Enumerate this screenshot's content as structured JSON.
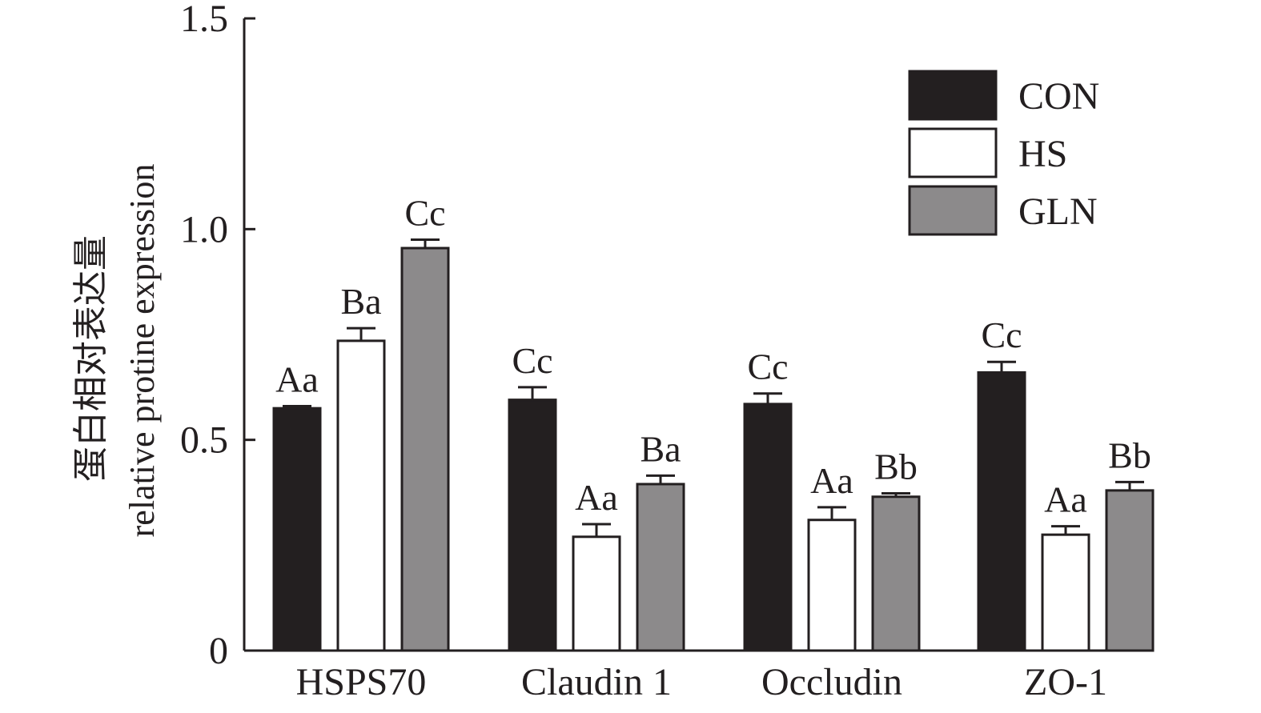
{
  "chart_data": {
    "type": "bar",
    "title": "",
    "ylabel_cn": "蛋白相对表达量",
    "ylabel_en": "relative protine expression",
    "xlabel": "",
    "ylim": [
      0,
      1.5
    ],
    "yticks": [
      {
        "value": 0,
        "label": "0"
      },
      {
        "value": 0.5,
        "label": "0.5"
      },
      {
        "value": 1.0,
        "label": "1.0"
      },
      {
        "value": 1.5,
        "label": "1.5"
      }
    ],
    "categories": [
      "HSPS70",
      "Claudin 1",
      "Occludin",
      "ZO-1"
    ],
    "series": [
      {
        "name": "CON",
        "color": "#231f20",
        "values": [
          0.575,
          0.595,
          0.585,
          0.66
        ],
        "errors": [
          0.005,
          0.03,
          0.025,
          0.025
        ],
        "labels": [
          "Aa",
          "Cc",
          "Cc",
          "Cc"
        ]
      },
      {
        "name": "HS",
        "color": "#ffffff",
        "values": [
          0.735,
          0.27,
          0.31,
          0.275
        ],
        "errors": [
          0.03,
          0.03,
          0.03,
          0.02
        ],
        "labels": [
          "Ba",
          "Aa",
          "Aa",
          "Aa"
        ]
      },
      {
        "name": "GLN",
        "color": "#8c8a8b",
        "values": [
          0.955,
          0.395,
          0.365,
          0.38
        ],
        "errors": [
          0.02,
          0.02,
          0.008,
          0.02
        ],
        "labels": [
          "Cc",
          "Ba",
          "Bb",
          "Bb"
        ]
      }
    ],
    "legend_position": "top-right",
    "grid": false
  }
}
